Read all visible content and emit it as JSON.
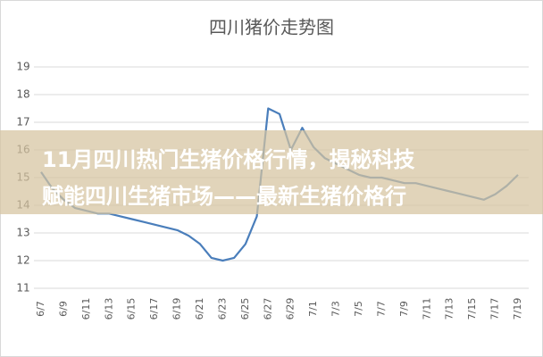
{
  "chart_data": {
    "type": "line",
    "title": "四川猪价走势图",
    "categories": [
      "6/7",
      null,
      "6/9",
      null,
      "6/11",
      null,
      "6/13",
      null,
      "6/15",
      null,
      "6/17",
      null,
      "6/19",
      null,
      "6/21",
      null,
      "6/23",
      null,
      "6/25",
      null,
      "6/27",
      null,
      "6/29",
      null,
      "7/1",
      null,
      "7/3",
      null,
      "7/5",
      null,
      "7/7",
      null,
      "7/9",
      null,
      "7/11",
      null,
      "7/13",
      null,
      "7/15",
      null,
      "7/17",
      null,
      "7/19"
    ],
    "series": [
      {
        "color": "#4a7ebb",
        "values": [
          15.2,
          14.6,
          14.2,
          13.9,
          13.8,
          13.7,
          13.7,
          13.6,
          13.5,
          13.4,
          13.3,
          13.2,
          13.1,
          12.9,
          12.6,
          12.1,
          12.0,
          12.1,
          12.6,
          13.6,
          17.5,
          17.3,
          16.0,
          16.8,
          16.1,
          15.7,
          15.5,
          15.3,
          15.1,
          15.0,
          15.0,
          14.9,
          14.8,
          14.8,
          14.7,
          14.6,
          14.5,
          14.4,
          14.3,
          14.2,
          14.4,
          14.7,
          15.1
        ]
      }
    ],
    "ylim": [
      11,
      19
    ],
    "yticks": [
      11,
      12,
      13,
      14,
      15,
      16,
      17,
      18,
      19
    ],
    "grid": true
  },
  "banner": {
    "lines": [
      "11月四川热门生猪价格行情，揭秘科技",
      "赋能四川生猪市场——最新生猪价格行"
    ]
  }
}
